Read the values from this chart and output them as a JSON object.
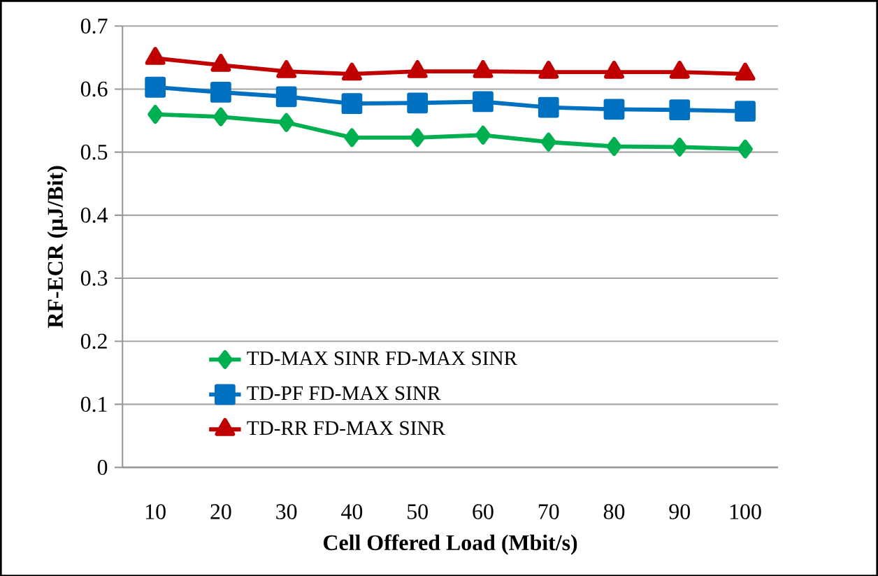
{
  "chart_data": {
    "type": "line",
    "xlabel": "Cell Offered Load (Mbit/s)",
    "ylabel": "RF-ECR (µJ/Bit)",
    "categories": [
      "10",
      "20",
      "30",
      "40",
      "50",
      "60",
      "70",
      "80",
      "90",
      "100"
    ],
    "series": [
      {
        "name": "TD-MAX SINR FD-MAX SINR",
        "color": "#00b050",
        "marker": "diamond",
        "values": [
          0.56,
          0.556,
          0.547,
          0.523,
          0.523,
          0.527,
          0.516,
          0.509,
          0.508,
          0.505
        ]
      },
      {
        "name": "TD-PF FD-MAX SINR",
        "color": "#0070c0",
        "marker": "square",
        "values": [
          0.603,
          0.595,
          0.588,
          0.577,
          0.578,
          0.58,
          0.571,
          0.568,
          0.567,
          0.565
        ]
      },
      {
        "name": "TD-RR FD-MAX SINR",
        "color": "#c00000",
        "marker": "triangle",
        "values": [
          0.649,
          0.638,
          0.628,
          0.624,
          0.628,
          0.628,
          0.627,
          0.627,
          0.627,
          0.624
        ]
      }
    ],
    "ylim": [
      0,
      0.7
    ],
    "yticks": [
      0,
      0.1,
      0.2,
      0.3,
      0.4,
      0.5,
      0.6,
      0.7
    ],
    "grid": "y",
    "legend": "bottom left"
  }
}
